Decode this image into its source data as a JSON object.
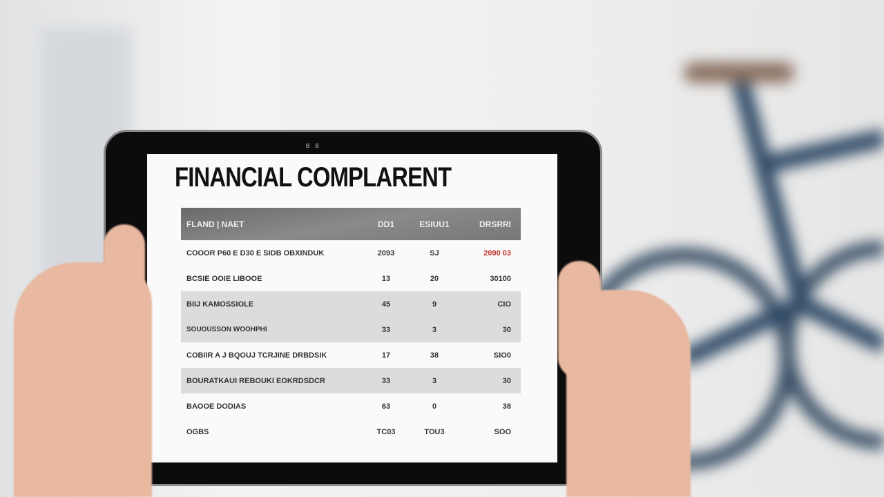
{
  "tablet": {
    "camera_label": "B B",
    "screen": {
      "title": "FINANCIAL COMPLARENT",
      "headers": [
        "FLAND | NAET",
        "DD1",
        "ESIUU1",
        "DRSRRI"
      ],
      "rows": [
        {
          "name": "COOOR P60 E D30 E SIDB OBXINDUK",
          "v1": "2093",
          "v2": "SJ",
          "v3": "2090 03",
          "highlight": "#c0302a"
        },
        {
          "name": "BCSIE OOIE LIBOOE",
          "v1": "13",
          "v2": "20",
          "v3": "30100"
        },
        {
          "name": "BIIJ KAMOSSIOLE",
          "sub": "SOUOUSSON WOOHPHI",
          "v1": "45",
          "v2": "9",
          "v3": "CIO",
          "v1b": "33",
          "v2b": "3",
          "v3b": "30"
        },
        {
          "name": "COBIIR A J BQOUJ TCRJINE DRBDSIK",
          "v1": "17",
          "v2": "38",
          "v3": "SIO0"
        },
        {
          "name": "BOURATKAUI REBOUKI EOKRDSDCR",
          "v1": "33",
          "v2": "3",
          "v3": "30"
        },
        {
          "name": "BAOOE DODIAS",
          "v1": "63",
          "v2": "0",
          "v3": "38"
        },
        {
          "name": "OGBS",
          "v1": "TC03",
          "v2": "TOU3",
          "v3": "SOO"
        }
      ]
    }
  }
}
